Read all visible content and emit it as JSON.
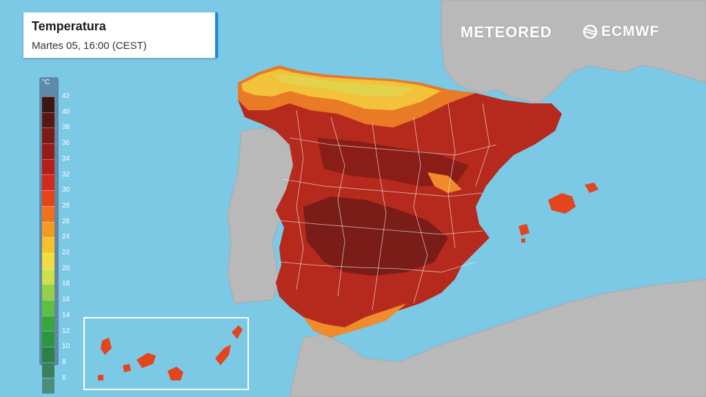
{
  "header": {
    "title": "Temperatura",
    "subtitle": "Martes 05, 16:00 (CEST)"
  },
  "branding": {
    "meteored": "METEORED",
    "ecmwf": "ECMWF"
  },
  "legend": {
    "unit": "°C",
    "ticks": [
      "42",
      "40",
      "38",
      "36",
      "34",
      "32",
      "30",
      "28",
      "26",
      "24",
      "22",
      "20",
      "18",
      "16",
      "14",
      "12",
      "10",
      "8",
      "6"
    ],
    "colors": [
      "#3d1512",
      "#5a1814",
      "#7a1b15",
      "#951d17",
      "#b51f19",
      "#d12b1e",
      "#e5431c",
      "#f0711d",
      "#f39a22",
      "#f6c22c",
      "#f1dd3e",
      "#cfe04a",
      "#95d047",
      "#5ebf42",
      "#36a83b",
      "#2d9440",
      "#2b8147",
      "#3a7f62",
      "#4a8e80"
    ]
  },
  "colors": {
    "sea": "#7cc9e6",
    "land": "#b8b8b8",
    "accent": "#1e88d6"
  }
}
